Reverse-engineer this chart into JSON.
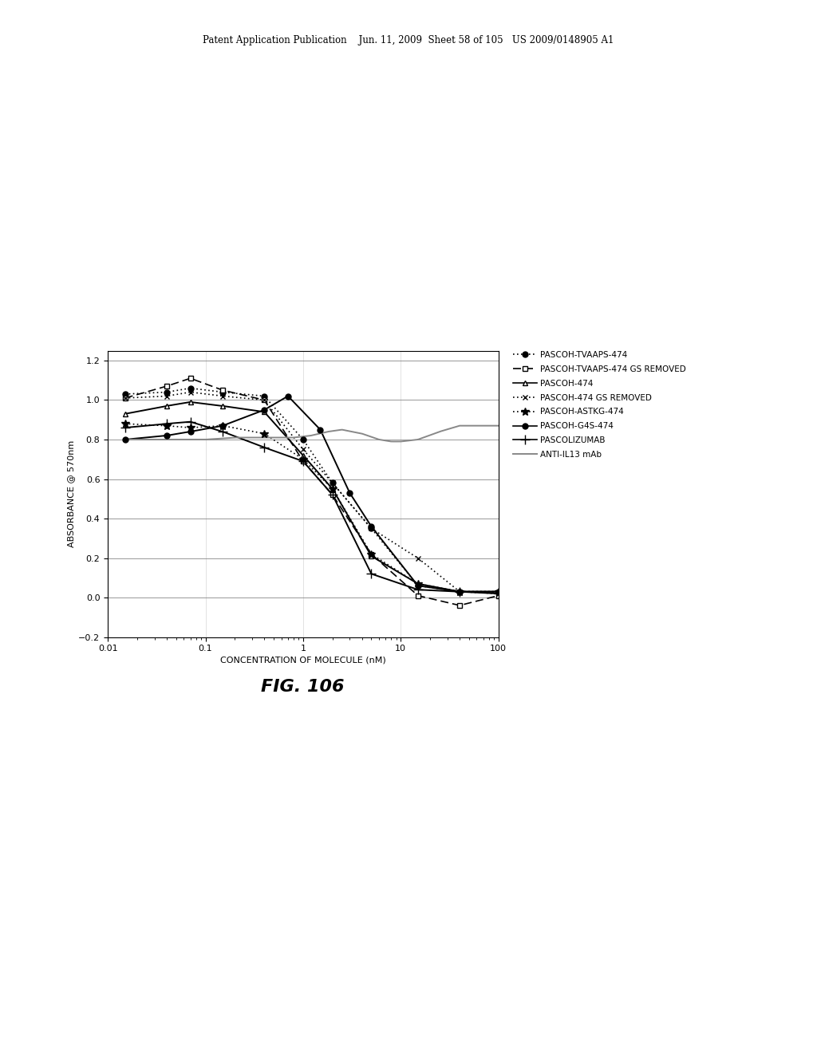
{
  "header": "Patent Application Publication    Jun. 11, 2009  Sheet 58 of 105   US 2009/0148905 A1",
  "xlabel": "CONCENTRATION OF MOLECULE (nM)",
  "ylabel": "ABSORBANCE @ 570nm",
  "fig_label": "FIG. 106",
  "xlim": [
    0.01,
    100
  ],
  "ylim": [
    -0.2,
    1.25
  ],
  "yticks": [
    -0.2,
    0.0,
    0.2,
    0.4,
    0.6,
    0.8,
    1.0,
    1.2
  ],
  "background_color": "#ffffff",
  "series": [
    {
      "label": "PASCOH-TVAAPS-474",
      "linestyle": "dotted",
      "marker": "o",
      "filled": true,
      "color": "#000000",
      "x": [
        0.015,
        0.04,
        0.07,
        0.15,
        0.4,
        1.0,
        2.0,
        5.0,
        15.0,
        40.0,
        100.0
      ],
      "y": [
        1.03,
        1.04,
        1.06,
        1.04,
        1.02,
        0.8,
        0.58,
        0.35,
        0.06,
        0.03,
        0.03
      ]
    },
    {
      "label": "PASCOH-TVAAPS-474 GS REMOVED",
      "linestyle": "dashed",
      "marker": "s",
      "filled": false,
      "color": "#000000",
      "x": [
        0.015,
        0.04,
        0.07,
        0.15,
        0.4,
        1.0,
        2.0,
        5.0,
        15.0,
        40.0,
        100.0
      ],
      "y": [
        1.01,
        1.07,
        1.11,
        1.05,
        1.0,
        0.69,
        0.52,
        0.22,
        0.01,
        -0.04,
        0.01
      ]
    },
    {
      "label": "PASCOH-474",
      "linestyle": "solid",
      "marker": "^",
      "filled": false,
      "color": "#000000",
      "x": [
        0.015,
        0.04,
        0.07,
        0.15,
        0.4,
        1.0,
        2.0,
        5.0,
        15.0,
        40.0,
        100.0
      ],
      "y": [
        0.93,
        0.97,
        0.99,
        0.97,
        0.94,
        0.72,
        0.55,
        0.21,
        0.07,
        0.03,
        0.03
      ]
    },
    {
      "label": "PASCOH-474 GS REMOVED",
      "linestyle": "dotted",
      "marker": "x",
      "filled": true,
      "color": "#000000",
      "x": [
        0.015,
        0.04,
        0.07,
        0.15,
        0.4,
        1.0,
        2.0,
        5.0,
        15.0,
        40.0,
        100.0
      ],
      "y": [
        1.01,
        1.02,
        1.04,
        1.02,
        1.0,
        0.75,
        0.58,
        0.35,
        0.2,
        0.03,
        0.02
      ]
    },
    {
      "label": "PASCOH-ASTKG-474",
      "linestyle": "dotted",
      "marker": "*",
      "filled": true,
      "color": "#000000",
      "x": [
        0.015,
        0.04,
        0.07,
        0.15,
        0.4,
        1.0,
        2.0,
        5.0,
        15.0,
        40.0,
        100.0
      ],
      "y": [
        0.88,
        0.87,
        0.86,
        0.87,
        0.83,
        0.7,
        0.55,
        0.22,
        0.07,
        0.03,
        0.03
      ]
    },
    {
      "label": "PASCOH-G4S-474",
      "linestyle": "solid",
      "marker": "o",
      "filled": true,
      "color": "#000000",
      "x": [
        0.015,
        0.04,
        0.07,
        0.15,
        0.4,
        0.7,
        1.5,
        3.0,
        5.0,
        15.0,
        40.0,
        100.0
      ],
      "y": [
        0.8,
        0.82,
        0.84,
        0.87,
        0.95,
        1.02,
        0.85,
        0.53,
        0.36,
        0.06,
        0.03,
        0.03
      ]
    },
    {
      "label": "PASCOLIZUMAB",
      "linestyle": "solid",
      "marker": "+",
      "filled": true,
      "color": "#000000",
      "x": [
        0.015,
        0.04,
        0.07,
        0.15,
        0.4,
        1.0,
        2.0,
        5.0,
        15.0,
        40.0,
        100.0
      ],
      "y": [
        0.86,
        0.88,
        0.89,
        0.84,
        0.76,
        0.69,
        0.52,
        0.12,
        0.04,
        0.03,
        0.02
      ]
    },
    {
      "label": "ANTI-IL13 mAb",
      "linestyle": "solid",
      "marker": null,
      "filled": false,
      "color": "#888888",
      "x": [
        0.015,
        0.05,
        0.1,
        0.2,
        0.5,
        0.8,
        1.2,
        1.8,
        2.5,
        4.0,
        6.0,
        8.0,
        10.0,
        15.0,
        25.0,
        40.0,
        70.0,
        100.0
      ],
      "y": [
        0.8,
        0.8,
        0.8,
        0.81,
        0.81,
        0.81,
        0.82,
        0.84,
        0.85,
        0.83,
        0.8,
        0.79,
        0.79,
        0.8,
        0.84,
        0.87,
        0.87,
        0.87
      ]
    }
  ]
}
